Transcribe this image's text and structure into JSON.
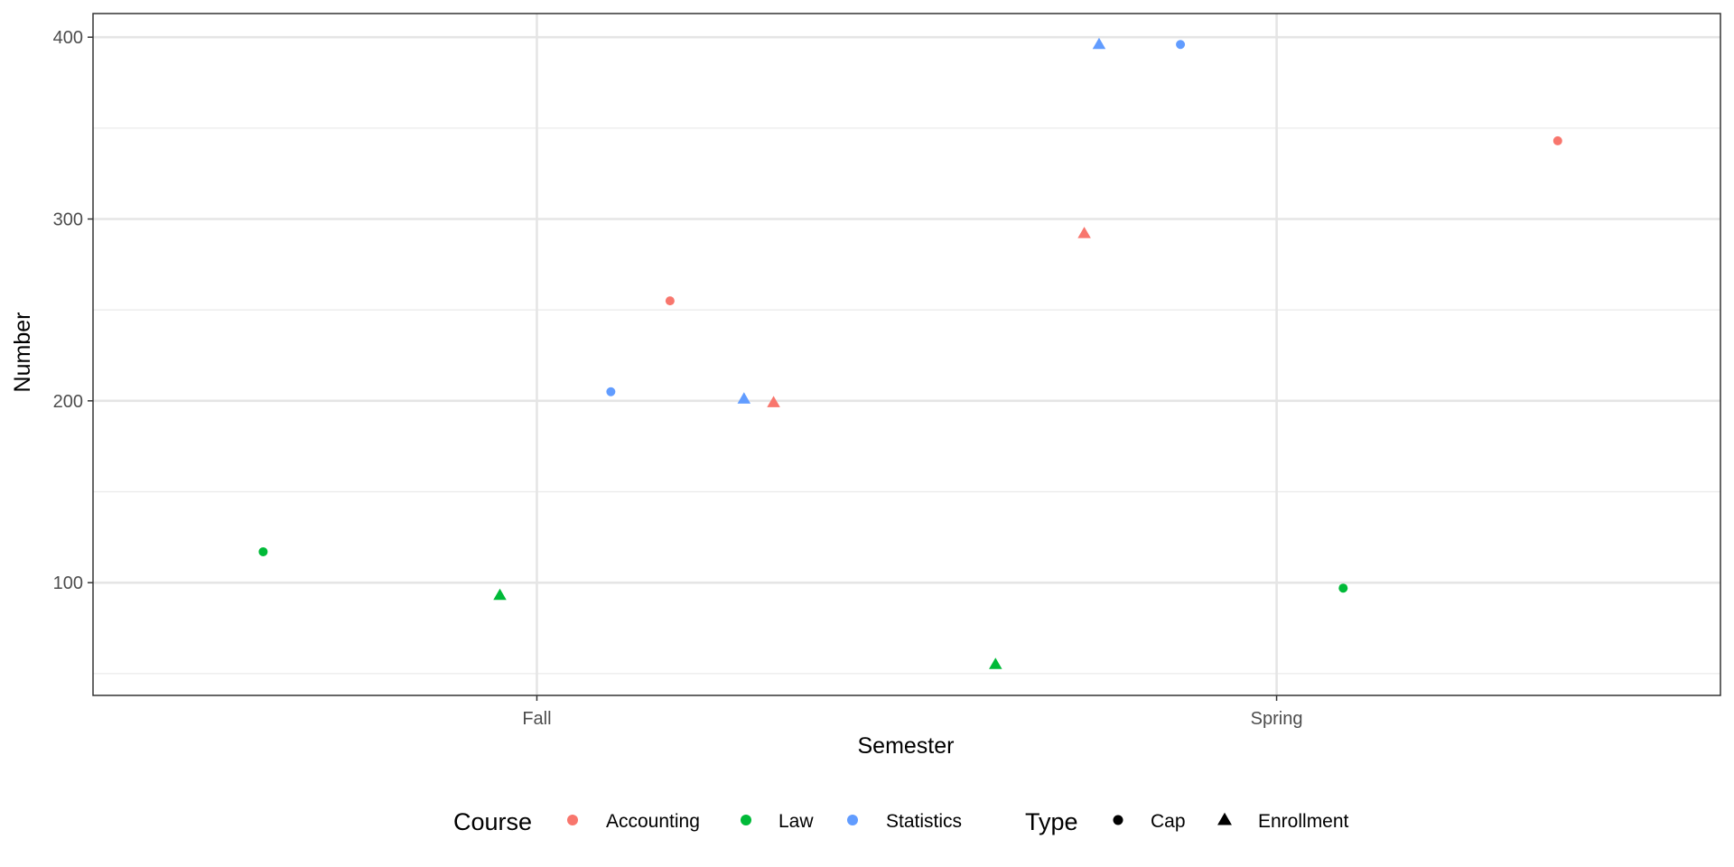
{
  "chart_data": {
    "type": "scatter",
    "xlabel": "Semester",
    "ylabel": "Number",
    "categories": [
      "Fall",
      "Spring"
    ],
    "yticks": [
      100,
      200,
      300,
      400
    ],
    "ylim": [
      38,
      413
    ],
    "xlim": [
      0.4,
      2.6
    ],
    "grid": true,
    "x_jitter": true,
    "legend_position": "bottom",
    "legend_course_title": "Course",
    "legend_type_title": "Type",
    "courses": [
      {
        "name": "Accounting",
        "color": "#F8766D"
      },
      {
        "name": "Law",
        "color": "#00BA38"
      },
      {
        "name": "Statistics",
        "color": "#619CFF"
      }
    ],
    "types": [
      {
        "name": "Cap",
        "shape": "circle"
      },
      {
        "name": "Enrollment",
        "shape": "triangle"
      }
    ],
    "points": [
      {
        "semester": "Fall",
        "course": "Law",
        "type": "Cap",
        "x": 0.63,
        "y": 117
      },
      {
        "semester": "Fall",
        "course": "Law",
        "type": "Enrollment",
        "x": 0.95,
        "y": 93
      },
      {
        "semester": "Fall",
        "course": "Statistics",
        "type": "Cap",
        "x": 1.1,
        "y": 205
      },
      {
        "semester": "Fall",
        "course": "Accounting",
        "type": "Cap",
        "x": 1.18,
        "y": 255
      },
      {
        "semester": "Fall",
        "course": "Statistics",
        "type": "Enrollment",
        "x": 1.28,
        "y": 201
      },
      {
        "semester": "Fall",
        "course": "Accounting",
        "type": "Enrollment",
        "x": 1.32,
        "y": 199
      },
      {
        "semester": "Spring",
        "course": "Law",
        "type": "Enrollment",
        "x": 1.62,
        "y": 55
      },
      {
        "semester": "Spring",
        "course": "Accounting",
        "type": "Enrollment",
        "x": 1.74,
        "y": 292
      },
      {
        "semester": "Spring",
        "course": "Statistics",
        "type": "Enrollment",
        "x": 1.76,
        "y": 396
      },
      {
        "semester": "Spring",
        "course": "Statistics",
        "type": "Cap",
        "x": 1.87,
        "y": 396
      },
      {
        "semester": "Spring",
        "course": "Law",
        "type": "Cap",
        "x": 2.09,
        "y": 97
      },
      {
        "semester": "Spring",
        "course": "Accounting",
        "type": "Cap",
        "x": 2.38,
        "y": 343
      }
    ]
  }
}
